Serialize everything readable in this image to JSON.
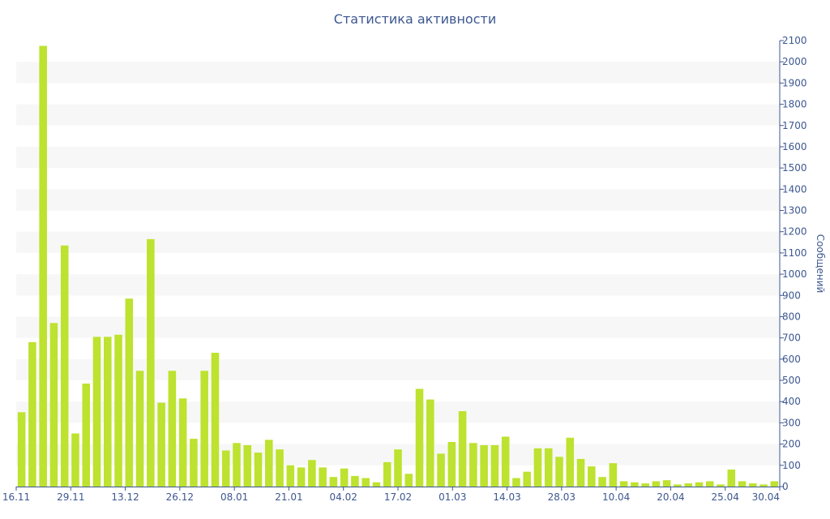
{
  "chart_data": {
    "type": "bar",
    "title": "Статистика активности",
    "xlabel": "",
    "ylabel": "Сообщений",
    "ylim": [
      0,
      2100
    ],
    "y_ticks": [
      0,
      100,
      200,
      300,
      400,
      500,
      600,
      700,
      800,
      900,
      1000,
      1100,
      1200,
      1300,
      1400,
      1500,
      1600,
      1700,
      1800,
      1900,
      2000,
      2100
    ],
    "y_axis_side": "right",
    "grid": "alternating horizontal bands",
    "legend": "none",
    "bar_color": "#bde22f",
    "band_color": "#f7f7f7",
    "text_color": "#3d5790",
    "x_tick_labels": [
      "16.11",
      "29.11",
      "13.12",
      "26.12",
      "08.01",
      "21.01",
      "04.02",
      "17.02",
      "01.03",
      "14.03",
      "28.03",
      "10.04",
      "20.04",
      "25.04",
      "30.04"
    ],
    "values": [
      350,
      680,
      2075,
      770,
      1135,
      250,
      485,
      705,
      705,
      715,
      885,
      545,
      1165,
      395,
      545,
      415,
      225,
      545,
      630,
      170,
      205,
      195,
      160,
      220,
      175,
      100,
      90,
      125,
      90,
      45,
      85,
      50,
      40,
      20,
      115,
      175,
      60,
      460,
      410,
      155,
      210,
      355,
      205,
      195,
      195,
      235,
      40,
      70,
      180,
      180,
      140,
      230,
      130,
      95,
      45,
      110,
      25,
      20,
      15,
      25,
      30,
      10,
      15,
      20,
      25,
      10,
      80,
      25,
      15,
      10,
      25
    ]
  }
}
